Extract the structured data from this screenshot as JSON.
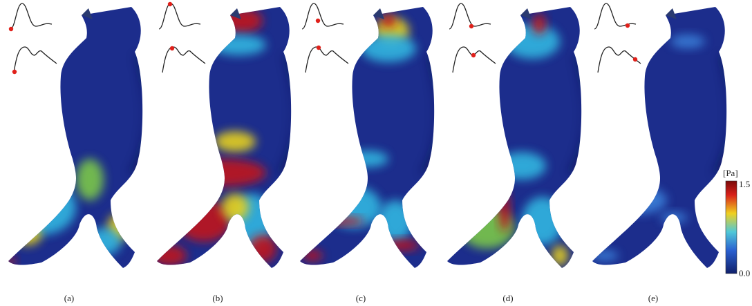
{
  "panels": [
    {
      "label": "(a)"
    },
    {
      "label": "(b)"
    },
    {
      "label": "(c)"
    },
    {
      "label": "(d)"
    },
    {
      "label": "(e)"
    }
  ],
  "colorbar": {
    "unit": "[Pa]",
    "max": "1.5",
    "min": "0.0"
  }
}
